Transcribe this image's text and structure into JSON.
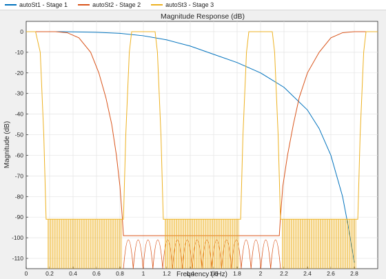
{
  "chart_data": {
    "type": "line",
    "title": "Magnitude Response (dB)",
    "xlabel": "Frequency (kHz)",
    "ylabel": "Magnitude (dB)",
    "xlim": [
      0,
      3.0
    ],
    "ylim": [
      -115,
      5
    ],
    "xticks": [
      "0",
      "0.2",
      "0.4",
      "0.6",
      "0.8",
      "1",
      "1.2",
      "1.4",
      "1.6",
      "1.8",
      "2",
      "2.2",
      "2.4",
      "2.6",
      "2.8"
    ],
    "yticks": [
      "0",
      "-10",
      "-20",
      "-30",
      "-40",
      "-50",
      "-60",
      "-70",
      "-80",
      "-90",
      "-100",
      "-110"
    ],
    "grid": true,
    "legend_position": "top",
    "series": [
      {
        "name": "autoSt1 - Stage 1",
        "color": "#0072BD",
        "x": [
          0,
          0.3,
          0.6,
          0.8,
          1.0,
          1.2,
          1.4,
          1.6,
          1.8,
          2.0,
          2.2,
          2.4,
          2.5,
          2.6,
          2.7,
          2.75,
          2.8
        ],
        "y": [
          0,
          0,
          -0.3,
          -0.8,
          -2,
          -4,
          -7,
          -11,
          -15,
          -20,
          -27,
          -38,
          -47,
          -60,
          -80,
          -95,
          -112
        ]
      },
      {
        "name": "autoSt2 - Stage 2",
        "color": "#D95319",
        "x": [
          0,
          0.25,
          0.35,
          0.45,
          0.55,
          0.62,
          0.68,
          0.73,
          0.77,
          0.8,
          0.82,
          0.83,
          1.0,
          1.2,
          1.4,
          1.6,
          1.8,
          2.0,
          2.16,
          2.17,
          2.19,
          2.23,
          2.28,
          2.33,
          2.4,
          2.5,
          2.6,
          2.7,
          2.8,
          3.0
        ],
        "y": [
          0,
          0,
          -0.5,
          -3,
          -10,
          -20,
          -32,
          -45,
          -60,
          -75,
          -90,
          -99,
          -99,
          -99,
          -99,
          -99,
          -99,
          -99,
          -99,
          -90,
          -75,
          -60,
          -45,
          -32,
          -20,
          -10,
          -3,
          -0.5,
          0,
          0
        ],
        "floor_x_range": [
          0.83,
          2.17
        ],
        "floor_y_range": [
          -99,
          -115
        ]
      },
      {
        "name": "autoSt3 - Stage 3",
        "color": "#EDB120",
        "x": [
          0,
          0.08,
          0.12,
          0.15,
          0.17,
          0.18,
          0.82,
          0.83,
          0.85,
          0.88,
          0.9,
          0.95,
          1.05,
          1.1,
          1.12,
          1.15,
          1.17,
          1.18,
          1.82,
          1.83,
          1.85,
          1.88,
          1.9,
          1.95,
          2.05,
          2.1,
          2.12,
          2.15,
          2.17,
          2.18,
          2.82,
          2.83,
          2.85,
          2.88,
          2.9,
          3.0
        ],
        "y": [
          0,
          0,
          -10,
          -50,
          -91,
          -91,
          -91,
          -91,
          -50,
          -10,
          0,
          0,
          0,
          0,
          -10,
          -50,
          -91,
          -91,
          -91,
          -91,
          -50,
          -10,
          0,
          0,
          0,
          0,
          -10,
          -50,
          -91,
          -91,
          -91,
          -91,
          -50,
          -10,
          0,
          0
        ],
        "stopband_level": -91,
        "stopband_floor": -115,
        "stopbands": [
          [
            0.18,
            0.82
          ],
          [
            1.18,
            1.82
          ],
          [
            2.18,
            2.82
          ]
        ]
      }
    ]
  }
}
